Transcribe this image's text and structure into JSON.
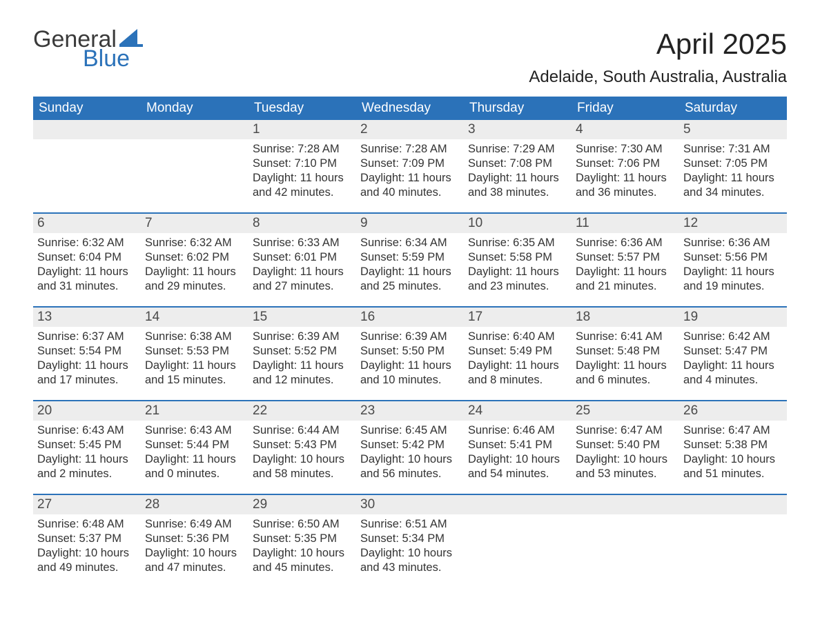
{
  "logo": {
    "text_general": "General",
    "text_blue": "Blue",
    "sail_color": "#2b72b9",
    "general_color": "#3a3a3a"
  },
  "title": "April 2025",
  "location": "Adelaide, South Australia, Australia",
  "colors": {
    "header_bg": "#2b72b9",
    "header_text": "#ffffff",
    "daynum_bg": "#ededed",
    "daynum_text": "#4a4a4a",
    "body_text": "#333333",
    "week_divider": "#2b72b9",
    "page_bg": "#ffffff"
  },
  "typography": {
    "title_fontsize": 42,
    "location_fontsize": 24,
    "weekday_fontsize": 19,
    "daynum_fontsize": 19,
    "body_fontsize": 16.5,
    "font_family": "Arial"
  },
  "weekdays": [
    "Sunday",
    "Monday",
    "Tuesday",
    "Wednesday",
    "Thursday",
    "Friday",
    "Saturday"
  ],
  "weeks": [
    [
      null,
      null,
      {
        "n": "1",
        "sunrise": "Sunrise: 7:28 AM",
        "sunset": "Sunset: 7:10 PM",
        "daylight": "Daylight: 11 hours and 42 minutes."
      },
      {
        "n": "2",
        "sunrise": "Sunrise: 7:28 AM",
        "sunset": "Sunset: 7:09 PM",
        "daylight": "Daylight: 11 hours and 40 minutes."
      },
      {
        "n": "3",
        "sunrise": "Sunrise: 7:29 AM",
        "sunset": "Sunset: 7:08 PM",
        "daylight": "Daylight: 11 hours and 38 minutes."
      },
      {
        "n": "4",
        "sunrise": "Sunrise: 7:30 AM",
        "sunset": "Sunset: 7:06 PM",
        "daylight": "Daylight: 11 hours and 36 minutes."
      },
      {
        "n": "5",
        "sunrise": "Sunrise: 7:31 AM",
        "sunset": "Sunset: 7:05 PM",
        "daylight": "Daylight: 11 hours and 34 minutes."
      }
    ],
    [
      {
        "n": "6",
        "sunrise": "Sunrise: 6:32 AM",
        "sunset": "Sunset: 6:04 PM",
        "daylight": "Daylight: 11 hours and 31 minutes."
      },
      {
        "n": "7",
        "sunrise": "Sunrise: 6:32 AM",
        "sunset": "Sunset: 6:02 PM",
        "daylight": "Daylight: 11 hours and 29 minutes."
      },
      {
        "n": "8",
        "sunrise": "Sunrise: 6:33 AM",
        "sunset": "Sunset: 6:01 PM",
        "daylight": "Daylight: 11 hours and 27 minutes."
      },
      {
        "n": "9",
        "sunrise": "Sunrise: 6:34 AM",
        "sunset": "Sunset: 5:59 PM",
        "daylight": "Daylight: 11 hours and 25 minutes."
      },
      {
        "n": "10",
        "sunrise": "Sunrise: 6:35 AM",
        "sunset": "Sunset: 5:58 PM",
        "daylight": "Daylight: 11 hours and 23 minutes."
      },
      {
        "n": "11",
        "sunrise": "Sunrise: 6:36 AM",
        "sunset": "Sunset: 5:57 PM",
        "daylight": "Daylight: 11 hours and 21 minutes."
      },
      {
        "n": "12",
        "sunrise": "Sunrise: 6:36 AM",
        "sunset": "Sunset: 5:56 PM",
        "daylight": "Daylight: 11 hours and 19 minutes."
      }
    ],
    [
      {
        "n": "13",
        "sunrise": "Sunrise: 6:37 AM",
        "sunset": "Sunset: 5:54 PM",
        "daylight": "Daylight: 11 hours and 17 minutes."
      },
      {
        "n": "14",
        "sunrise": "Sunrise: 6:38 AM",
        "sunset": "Sunset: 5:53 PM",
        "daylight": "Daylight: 11 hours and 15 minutes."
      },
      {
        "n": "15",
        "sunrise": "Sunrise: 6:39 AM",
        "sunset": "Sunset: 5:52 PM",
        "daylight": "Daylight: 11 hours and 12 minutes."
      },
      {
        "n": "16",
        "sunrise": "Sunrise: 6:39 AM",
        "sunset": "Sunset: 5:50 PM",
        "daylight": "Daylight: 11 hours and 10 minutes."
      },
      {
        "n": "17",
        "sunrise": "Sunrise: 6:40 AM",
        "sunset": "Sunset: 5:49 PM",
        "daylight": "Daylight: 11 hours and 8 minutes."
      },
      {
        "n": "18",
        "sunrise": "Sunrise: 6:41 AM",
        "sunset": "Sunset: 5:48 PM",
        "daylight": "Daylight: 11 hours and 6 minutes."
      },
      {
        "n": "19",
        "sunrise": "Sunrise: 6:42 AM",
        "sunset": "Sunset: 5:47 PM",
        "daylight": "Daylight: 11 hours and 4 minutes."
      }
    ],
    [
      {
        "n": "20",
        "sunrise": "Sunrise: 6:43 AM",
        "sunset": "Sunset: 5:45 PM",
        "daylight": "Daylight: 11 hours and 2 minutes."
      },
      {
        "n": "21",
        "sunrise": "Sunrise: 6:43 AM",
        "sunset": "Sunset: 5:44 PM",
        "daylight": "Daylight: 11 hours and 0 minutes."
      },
      {
        "n": "22",
        "sunrise": "Sunrise: 6:44 AM",
        "sunset": "Sunset: 5:43 PM",
        "daylight": "Daylight: 10 hours and 58 minutes."
      },
      {
        "n": "23",
        "sunrise": "Sunrise: 6:45 AM",
        "sunset": "Sunset: 5:42 PM",
        "daylight": "Daylight: 10 hours and 56 minutes."
      },
      {
        "n": "24",
        "sunrise": "Sunrise: 6:46 AM",
        "sunset": "Sunset: 5:41 PM",
        "daylight": "Daylight: 10 hours and 54 minutes."
      },
      {
        "n": "25",
        "sunrise": "Sunrise: 6:47 AM",
        "sunset": "Sunset: 5:40 PM",
        "daylight": "Daylight: 10 hours and 53 minutes."
      },
      {
        "n": "26",
        "sunrise": "Sunrise: 6:47 AM",
        "sunset": "Sunset: 5:38 PM",
        "daylight": "Daylight: 10 hours and 51 minutes."
      }
    ],
    [
      {
        "n": "27",
        "sunrise": "Sunrise: 6:48 AM",
        "sunset": "Sunset: 5:37 PM",
        "daylight": "Daylight: 10 hours and 49 minutes."
      },
      {
        "n": "28",
        "sunrise": "Sunrise: 6:49 AM",
        "sunset": "Sunset: 5:36 PM",
        "daylight": "Daylight: 10 hours and 47 minutes."
      },
      {
        "n": "29",
        "sunrise": "Sunrise: 6:50 AM",
        "sunset": "Sunset: 5:35 PM",
        "daylight": "Daylight: 10 hours and 45 minutes."
      },
      {
        "n": "30",
        "sunrise": "Sunrise: 6:51 AM",
        "sunset": "Sunset: 5:34 PM",
        "daylight": "Daylight: 10 hours and 43 minutes."
      },
      null,
      null,
      null
    ]
  ]
}
